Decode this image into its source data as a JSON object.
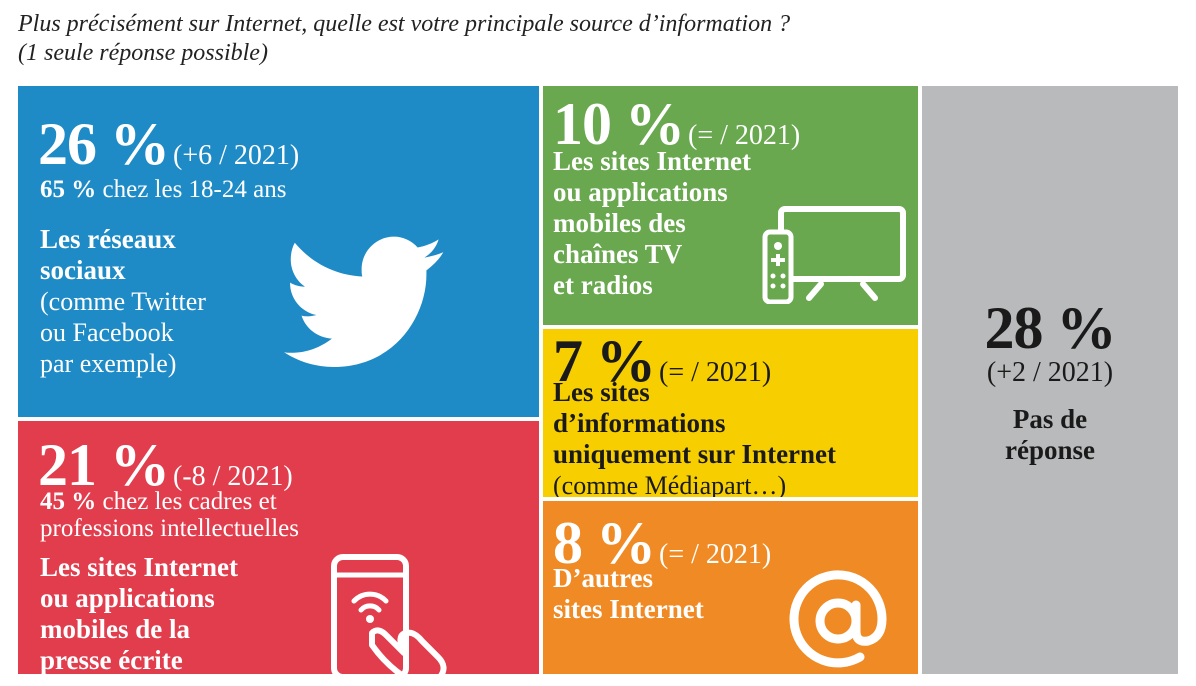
{
  "title": {
    "line1": "Plus précisément sur Internet, quelle est votre principale source d’information ?",
    "line2": "(1 seule réponse possible)"
  },
  "colors": {
    "social": "#1f8bc6",
    "press": "#e23d4d",
    "tvradio": "#69a84f",
    "infosites": "#f7cf00",
    "others": "#f08a24",
    "noanswer": "#b9babc"
  },
  "chart_data": {
    "type": "treemap",
    "unit": "%",
    "categories": [
      "Les réseaux sociaux",
      "Les sites Internet ou applications mobiles de la presse écrite",
      "Les sites Internet ou applications mobiles des chaînes TV et radios",
      "Les sites d’informations uniquement sur Internet",
      "D’autres sites Internet",
      "Pas de réponse"
    ],
    "values": [
      26,
      21,
      10,
      7,
      8,
      28
    ],
    "change_vs_2021": [
      "+6",
      "-8",
      "=",
      "=",
      "=",
      "+2"
    ]
  },
  "tiles": {
    "social": {
      "value": "26 %",
      "change": "(+6 / 2021)",
      "sub_value": "65 %",
      "sub_text": "chez les 18-24 ans",
      "label_l1": "Les réseaux",
      "label_l2": "sociaux",
      "note_l1": "(comme Twitter",
      "note_l2": "ou Facebook",
      "note_l3": "par exemple)",
      "icon": "twitter-bird-icon"
    },
    "press": {
      "value": "21 %",
      "change": "(-8 / 2021)",
      "sub_value": "45 %",
      "sub_text": "chez les cadres et",
      "sub_text2": "professions intellectuelles",
      "label_l1": "Les sites Internet",
      "label_l2": "ou applications",
      "label_l3": "mobiles de la",
      "label_l4": "presse écrite",
      "icon": "smartphone-tap-icon"
    },
    "tvradio": {
      "value": "10 %",
      "change": "(= / 2021)",
      "label_l1": "Les sites Internet",
      "label_l2": "ou applications",
      "label_l3": "mobiles des",
      "label_l4": "chaînes TV",
      "label_l5": "et radios",
      "icon": "tv-remote-icon"
    },
    "infosites": {
      "value": "7 %",
      "change": "(= / 2021)",
      "label_l1": "Les sites",
      "label_l2": "d’informations",
      "label_l3": "uniquement sur Internet",
      "note_l1": "(comme Médiapart…)"
    },
    "others": {
      "value": "8 %",
      "change": "(= / 2021)",
      "label_l1": "D’autres",
      "label_l2": "sites Internet",
      "icon": "at-sign-icon"
    },
    "noanswer": {
      "value": "28 %",
      "change": "(+2 / 2021)",
      "label_l1": "Pas de",
      "label_l2": "réponse"
    }
  }
}
